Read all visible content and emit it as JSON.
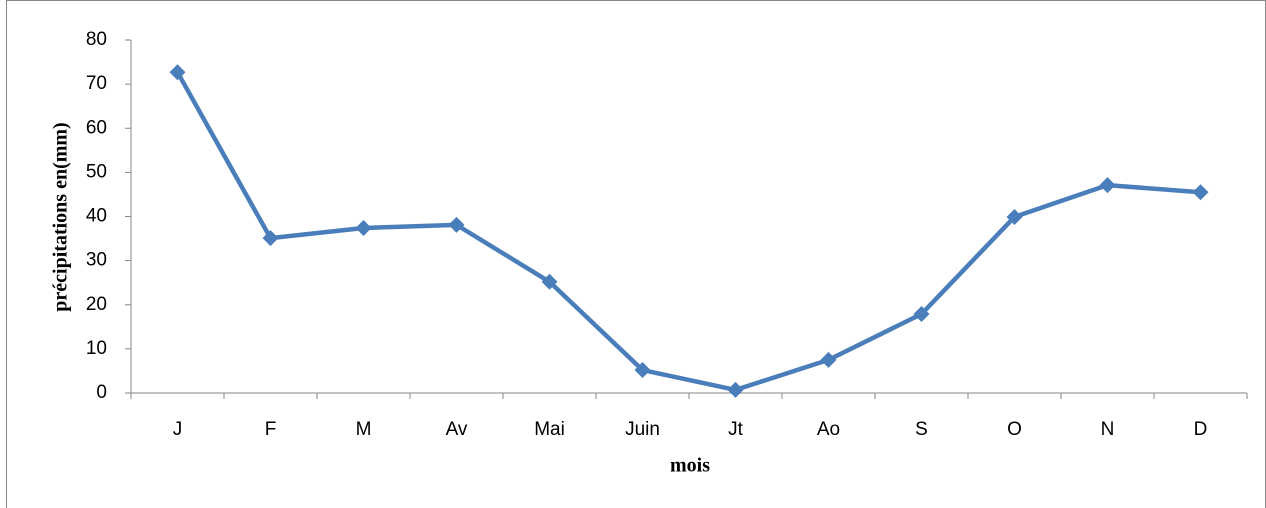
{
  "chart_data": {
    "type": "line",
    "x_label": "mois",
    "y_label": "précipitations en(mm)",
    "categories": [
      "J",
      "F",
      "M",
      "Av",
      "Mai",
      "Juin",
      "Jt",
      "Ao",
      "S",
      "O",
      "N",
      "D"
    ],
    "series": [
      {
        "name": "précipitations",
        "color": "#4a7ebb",
        "values": [
          72.7,
          35.1,
          37.4,
          38.1,
          25.2,
          5.2,
          0.7,
          7.5,
          17.9,
          39.9,
          47.1,
          45.5
        ]
      }
    ],
    "ylim": [
      0,
      80
    ],
    "yticks": [
      0,
      10,
      20,
      30,
      40,
      50,
      60,
      70,
      80
    ],
    "grid": false
  }
}
